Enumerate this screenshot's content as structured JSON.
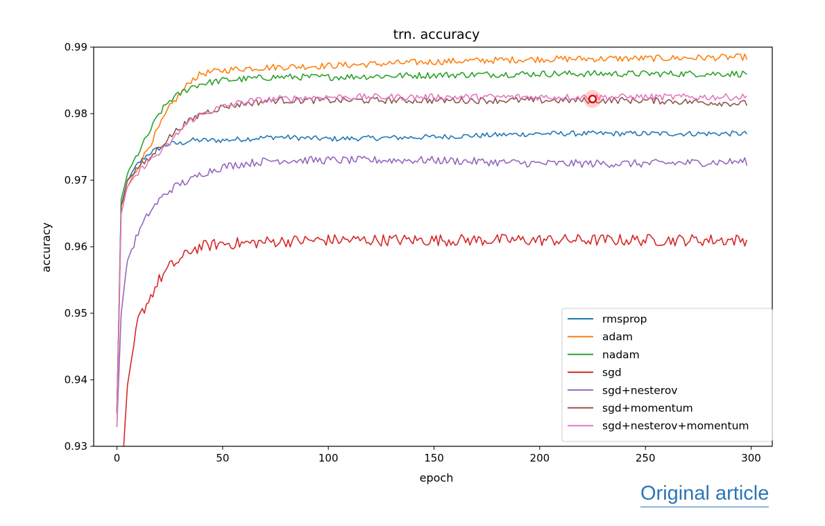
{
  "link": {
    "label": "Original article"
  },
  "chart_data": {
    "type": "line",
    "title": "trn. accuracy",
    "xlabel": "epoch",
    "ylabel": "accuracy",
    "xlim": [
      -11,
      310
    ],
    "ylim": [
      0.93,
      0.99
    ],
    "xticks": [
      0,
      50,
      100,
      150,
      200,
      250,
      300
    ],
    "yticks": [
      0.93,
      0.94,
      0.95,
      0.96,
      0.97,
      0.98,
      0.99
    ],
    "grid": false,
    "legend_position": "lower-right",
    "cursor_marker": {
      "x": 225,
      "y": 0.9822
    },
    "series": [
      {
        "name": "rmsprop",
        "color": "#1f77b4",
        "x": [
          0,
          2,
          5,
          10,
          15,
          20,
          25,
          30,
          35,
          40,
          50,
          60,
          75,
          100,
          150,
          200,
          250,
          298
        ],
        "values": [
          0.935,
          0.966,
          0.97,
          0.9725,
          0.974,
          0.9748,
          0.9755,
          0.9755,
          0.976,
          0.976,
          0.976,
          0.9762,
          0.9765,
          0.9762,
          0.9765,
          0.977,
          0.977,
          0.977
        ]
      },
      {
        "name": "adam",
        "color": "#ff7f0e",
        "x": [
          0,
          2,
          5,
          10,
          15,
          20,
          25,
          30,
          35,
          40,
          50,
          60,
          75,
          100,
          125,
          150,
          175,
          200,
          250,
          298
        ],
        "values": [
          0.935,
          0.966,
          0.969,
          0.972,
          0.975,
          0.978,
          0.981,
          0.983,
          0.985,
          0.986,
          0.9865,
          0.9868,
          0.987,
          0.9872,
          0.9875,
          0.9878,
          0.988,
          0.9882,
          0.9883,
          0.9885
        ]
      },
      {
        "name": "nadam",
        "color": "#2ca02c",
        "x": [
          0,
          2,
          5,
          10,
          15,
          20,
          25,
          30,
          35,
          40,
          50,
          60,
          75,
          100,
          150,
          200,
          250,
          298
        ],
        "values": [
          0.935,
          0.967,
          0.971,
          0.974,
          0.977,
          0.98,
          0.982,
          0.983,
          0.984,
          0.9845,
          0.985,
          0.9852,
          0.9855,
          0.9855,
          0.9858,
          0.986,
          0.986,
          0.986
        ]
      },
      {
        "name": "sgd",
        "color": "#d62728",
        "x": [
          3,
          5,
          10,
          15,
          20,
          25,
          30,
          35,
          40,
          50,
          60,
          75,
          100,
          150,
          200,
          250,
          298
        ],
        "values": [
          0.929,
          0.939,
          0.949,
          0.952,
          0.955,
          0.957,
          0.958,
          0.9595,
          0.96,
          0.9605,
          0.9605,
          0.9608,
          0.961,
          0.961,
          0.961,
          0.961,
          0.961
        ]
      },
      {
        "name": "sgd+nesterov",
        "color": "#9467bd",
        "x": [
          0,
          2,
          5,
          10,
          15,
          20,
          25,
          30,
          35,
          40,
          50,
          60,
          75,
          100,
          150,
          200,
          250,
          298
        ],
        "values": [
          0.933,
          0.95,
          0.958,
          0.962,
          0.965,
          0.967,
          0.9685,
          0.9695,
          0.97,
          0.971,
          0.972,
          0.9725,
          0.973,
          0.973,
          0.973,
          0.9725,
          0.9725,
          0.9728
        ]
      },
      {
        "name": "sgd+momentum",
        "color": "#8c564b",
        "x": [
          0,
          2,
          5,
          10,
          15,
          20,
          25,
          30,
          35,
          40,
          50,
          60,
          75,
          100,
          150,
          200,
          250,
          298
        ],
        "values": [
          0.935,
          0.966,
          0.97,
          0.972,
          0.973,
          0.975,
          0.9765,
          0.978,
          0.979,
          0.98,
          0.981,
          0.9815,
          0.982,
          0.982,
          0.982,
          0.982,
          0.982,
          0.9815
        ]
      },
      {
        "name": "sgd+nesterov+momentum",
        "color": "#e377c2",
        "x": [
          0,
          2,
          5,
          10,
          15,
          20,
          25,
          30,
          35,
          40,
          50,
          60,
          75,
          100,
          150,
          200,
          250,
          298
        ],
        "values": [
          0.933,
          0.965,
          0.969,
          0.971,
          0.973,
          0.974,
          0.9755,
          0.9775,
          0.979,
          0.98,
          0.981,
          0.9818,
          0.9822,
          0.9825,
          0.9825,
          0.9825,
          0.9825,
          0.9825
        ]
      }
    ]
  }
}
